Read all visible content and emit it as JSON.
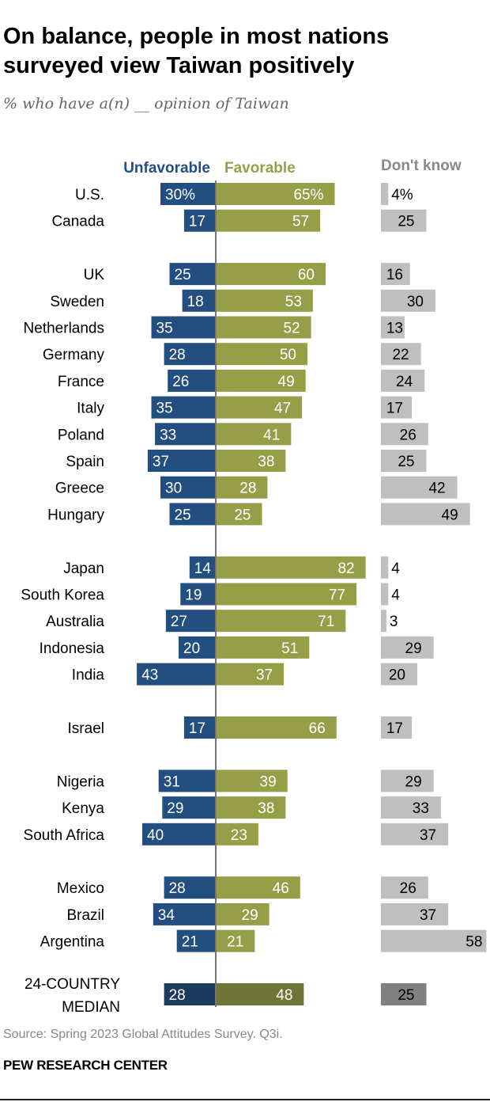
{
  "title": "On balance, people in most nations surveyed view Taiwan positively",
  "subtitle": "% who have a(n) __ opinion of Taiwan",
  "source": "Source: Spring 2023 Global Attitudes Survey. Q3i.",
  "brand": "PEW RESEARCH CENTER",
  "colors": {
    "unfavorable": "#234e80",
    "favorable": "#969f48",
    "dont_know": "#bfbfbf",
    "median_unfavorable": "#1b3a5e",
    "median_favorable": "#6e7537",
    "median_dont_know": "#808080"
  },
  "chart_data": {
    "type": "bar",
    "orientation": "horizontal-diverging",
    "title": "On balance, people in most nations surveyed view Taiwan positively",
    "subtitle": "% who have a(n) __ opinion of Taiwan",
    "legend": [
      "Unfavorable",
      "Favorable",
      "Don't know"
    ],
    "legend_placement": "top",
    "groups": [
      {
        "rows": [
          {
            "country": "U.S.",
            "unfavorable": 30,
            "favorable": 65,
            "dont_know": 4,
            "labels": [
              "30%",
              "65%",
              "4%"
            ]
          },
          {
            "country": "Canada",
            "unfavorable": 17,
            "favorable": 57,
            "dont_know": 25
          }
        ]
      },
      {
        "rows": [
          {
            "country": "UK",
            "unfavorable": 25,
            "favorable": 60,
            "dont_know": 16
          },
          {
            "country": "Sweden",
            "unfavorable": 18,
            "favorable": 53,
            "dont_know": 30
          },
          {
            "country": "Netherlands",
            "unfavorable": 35,
            "favorable": 52,
            "dont_know": 13
          },
          {
            "country": "Germany",
            "unfavorable": 28,
            "favorable": 50,
            "dont_know": 22
          },
          {
            "country": "France",
            "unfavorable": 26,
            "favorable": 49,
            "dont_know": 24
          },
          {
            "country": "Italy",
            "unfavorable": 35,
            "favorable": 47,
            "dont_know": 17
          },
          {
            "country": "Poland",
            "unfavorable": 33,
            "favorable": 41,
            "dont_know": 26
          },
          {
            "country": "Spain",
            "unfavorable": 37,
            "favorable": 38,
            "dont_know": 25
          },
          {
            "country": "Greece",
            "unfavorable": 30,
            "favorable": 28,
            "dont_know": 42
          },
          {
            "country": "Hungary",
            "unfavorable": 25,
            "favorable": 25,
            "dont_know": 49
          }
        ]
      },
      {
        "rows": [
          {
            "country": "Japan",
            "unfavorable": 14,
            "favorable": 82,
            "dont_know": 4
          },
          {
            "country": "South Korea",
            "unfavorable": 19,
            "favorable": 77,
            "dont_know": 4
          },
          {
            "country": "Australia",
            "unfavorable": 27,
            "favorable": 71,
            "dont_know": 3
          },
          {
            "country": "Indonesia",
            "unfavorable": 20,
            "favorable": 51,
            "dont_know": 29
          },
          {
            "country": "India",
            "unfavorable": 43,
            "favorable": 37,
            "dont_know": 20
          }
        ]
      },
      {
        "rows": [
          {
            "country": "Israel",
            "unfavorable": 17,
            "favorable": 66,
            "dont_know": 17
          }
        ]
      },
      {
        "rows": [
          {
            "country": "Nigeria",
            "unfavorable": 31,
            "favorable": 39,
            "dont_know": 29
          },
          {
            "country": "Kenya",
            "unfavorable": 29,
            "favorable": 38,
            "dont_know": 33
          },
          {
            "country": "South Africa",
            "unfavorable": 40,
            "favorable": 23,
            "dont_know": 37
          }
        ]
      },
      {
        "rows": [
          {
            "country": "Mexico",
            "unfavorable": 28,
            "favorable": 46,
            "dont_know": 26
          },
          {
            "country": "Brazil",
            "unfavorable": 34,
            "favorable": 29,
            "dont_know": 37
          },
          {
            "country": "Argentina",
            "unfavorable": 21,
            "favorable": 21,
            "dont_know": 58
          }
        ]
      },
      {
        "median": true,
        "rows": [
          {
            "country": "24-COUNTRY MEDIAN",
            "country_lines": [
              "24-COUNTRY",
              "MEDIAN"
            ],
            "unfavorable": 28,
            "favorable": 48,
            "dont_know": 25
          }
        ]
      }
    ]
  }
}
